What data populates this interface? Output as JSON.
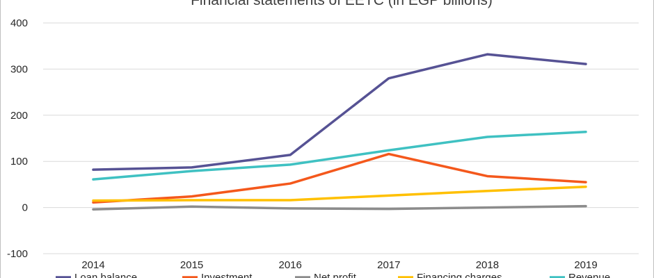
{
  "chart_data": {
    "type": "line",
    "title": "Financial statements of EETC (in EGP billions)",
    "categories": [
      "2014",
      "2015",
      "2016",
      "2017",
      "2018",
      "2019"
    ],
    "ylim": [
      -100,
      400
    ],
    "yticks": [
      -100,
      0,
      100,
      200,
      300,
      400
    ],
    "grid": true,
    "legend_position": "bottom",
    "series": [
      {
        "name": "Loan balance",
        "color": "#565294",
        "values": [
          82,
          87,
          114,
          280,
          332,
          311
        ]
      },
      {
        "name": "Investment",
        "color": "#f4581c",
        "values": [
          11,
          24,
          52,
          116,
          68,
          55
        ]
      },
      {
        "name": "Net profit",
        "color": "#8c8c8c",
        "values": [
          -4,
          2,
          -2,
          -3,
          0,
          3
        ]
      },
      {
        "name": "Financing charges",
        "color": "#ffc000",
        "values": [
          15,
          16,
          16,
          26,
          36,
          45
        ]
      },
      {
        "name": "Revenue",
        "color": "#3fc1c2",
        "values": [
          61,
          79,
          93,
          124,
          153,
          164
        ]
      }
    ]
  }
}
